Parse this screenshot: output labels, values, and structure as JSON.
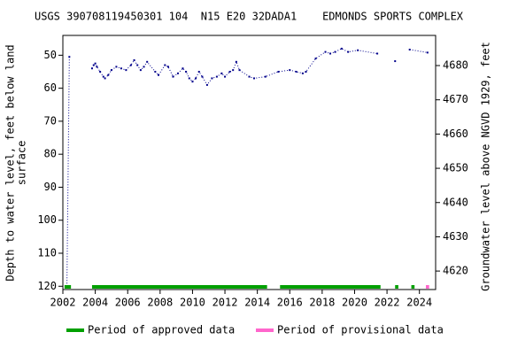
{
  "chart_data": {
    "type": "line",
    "title": "USGS 390708119450301 104  N15 E20 32DADA1    EDMONDS SPORTS COMPLEX",
    "ylabel": [
      "Depth to water level, feet below land",
      "surface"
    ],
    "y2label": "Groundwater level above NGVD 1929, feet",
    "xlim": [
      2002,
      2025
    ],
    "xticks": [
      2002,
      2004,
      2006,
      2008,
      2010,
      2012,
      2014,
      2016,
      2018,
      2020,
      2022,
      2024
    ],
    "ylim": [
      44,
      121
    ],
    "y_inverted": true,
    "yticks": [
      50,
      60,
      70,
      80,
      90,
      100,
      110,
      120
    ],
    "y2lim": [
      4614.6,
      4688.8
    ],
    "y2ticks": [
      4620,
      4630,
      4640,
      4650,
      4660,
      4670,
      4680
    ],
    "series": [
      {
        "color": "#00008b",
        "x": [
          2002.25,
          2002.4,
          null,
          2003.8,
          2003.9,
          2004.0,
          2004.1,
          2004.3,
          2004.5,
          2004.6,
          2004.8,
          2005.0,
          2005.3,
          2005.6,
          2005.9,
          2006.2,
          2006.4,
          2006.6,
          2006.8,
          2007.0,
          2007.2,
          2007.7,
          2007.9,
          2008.3,
          2008.5,
          2008.8,
          2009.1,
          2009.4,
          2009.6,
          2009.8,
          2010.0,
          2010.2,
          2010.4,
          2010.6,
          2010.9,
          2011.2,
          2011.5,
          2011.8,
          2012.0,
          2012.3,
          2012.5,
          2012.7,
          2012.9,
          2013.5,
          2013.8,
          2014.5,
          2015.3,
          2016.0,
          2016.4,
          2016.8,
          2017.0,
          2017.6,
          2018.2,
          2018.5,
          2018.8,
          2019.2,
          2019.6,
          2020.2,
          2021.4,
          null,
          2022.5,
          null,
          2023.4,
          2024.5
        ],
        "values": [
          120,
          50.5,
          null,
          54,
          53,
          52.5,
          53.5,
          55,
          56.5,
          57,
          56,
          54.5,
          53.5,
          54,
          54.5,
          53,
          51.5,
          53,
          54.5,
          53.5,
          52,
          55,
          56,
          53,
          53.5,
          56.5,
          55.5,
          54,
          55,
          57,
          58,
          57,
          55,
          56.5,
          59,
          57,
          56.5,
          55.5,
          56.5,
          55,
          54.5,
          52,
          54.5,
          56.5,
          57,
          56.5,
          55,
          54.5,
          55,
          55.5,
          55,
          51,
          49,
          49.5,
          49,
          48,
          49,
          48.5,
          49.5,
          null,
          51.8,
          null,
          48.3,
          49.2
        ]
      }
    ],
    "legend": [
      {
        "name": "Period of approved data",
        "color": "#00a000",
        "periods": [
          [
            2002.1,
            2002.5
          ],
          [
            2003.8,
            2014.6
          ],
          [
            2015.4,
            2021.6
          ],
          [
            2022.5,
            2022.7
          ],
          [
            2023.5,
            2023.7
          ]
        ]
      },
      {
        "name": "Period of provisional data",
        "color": "#ff66cc",
        "periods": [
          [
            2024.4,
            2024.6
          ]
        ]
      }
    ]
  }
}
